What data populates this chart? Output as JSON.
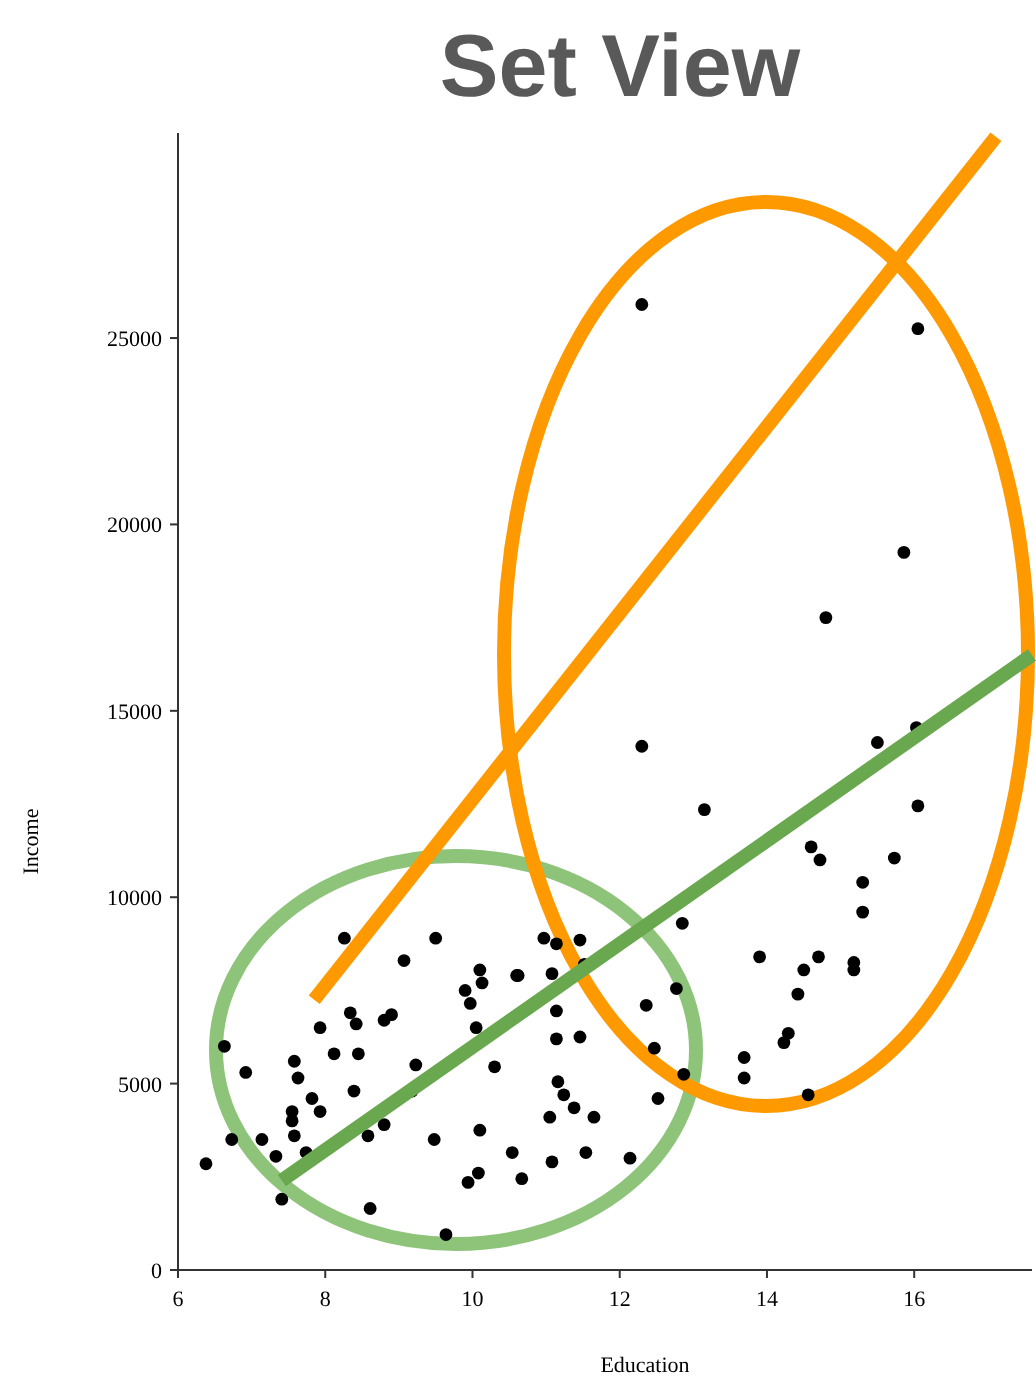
{
  "chart_data": {
    "type": "scatter",
    "title": "Set View",
    "xlabel": "Education",
    "ylabel": "Income",
    "xlim": [
      6,
      17.6
    ],
    "ylim": [
      0,
      30500
    ],
    "xticks": [
      6,
      8,
      10,
      12,
      14,
      16
    ],
    "yticks": [
      0,
      5000,
      10000,
      15000,
      20000,
      25000
    ],
    "grid": false,
    "series": [
      {
        "marker": "circle",
        "color": "#000000",
        "x": [
          8.26,
          9.5,
          9.07,
          10.1,
          10.6,
          9.9,
          10.13,
          9.97,
          8.34,
          8.42,
          7.93,
          8.8,
          8.9,
          10.05,
          8.12,
          8.45,
          7.58,
          6.63,
          6.92,
          7.63,
          9.23,
          10.3,
          8.39,
          7.82,
          7.55,
          7.93,
          9.18,
          7.55,
          7.58,
          6.73,
          7.14,
          8.8,
          8.58,
          7.74,
          7.33,
          6.38,
          9.48,
          10.1,
          10.54,
          10.08,
          9.94,
          10.67,
          7.41,
          8.61,
          9.64,
          12.85,
          10.97,
          11.46,
          11.14,
          11.52,
          10.62,
          11.08,
          12.77,
          12.36,
          11.14,
          11.14,
          11.46,
          12.47,
          13.69,
          13.69,
          12.87,
          11.16,
          11.24,
          12.52,
          11.38,
          11.05,
          11.65,
          11.54,
          11.08,
          12.14,
          16.05,
          15.86,
          14.8,
          15.5,
          16.03,
          16.05,
          14.6,
          14.72,
          15.73,
          15.3,
          15.3,
          13.9,
          14.7,
          14.5,
          15.18,
          15.18,
          14.42,
          14.29,
          14.23,
          14.56,
          12.3,
          12.3,
          13.15
        ],
        "values": [
          8900,
          8900,
          8300,
          8050,
          7900,
          7500,
          7700,
          7150,
          6900,
          6600,
          6500,
          6700,
          6850,
          6500,
          5800,
          5800,
          5600,
          6000,
          5300,
          5150,
          5500,
          5450,
          4800,
          4600,
          4250,
          4250,
          4800,
          4000,
          3600,
          3500,
          3500,
          3900,
          3600,
          3150,
          3050,
          2850,
          3500,
          3750,
          3150,
          2600,
          2350,
          2450,
          1900,
          1650,
          950,
          9300,
          8900,
          8850,
          8750,
          8200,
          7900,
          7950,
          7550,
          7100,
          6950,
          6200,
          6250,
          5950,
          5700,
          5150,
          5250,
          5050,
          4700,
          4600,
          4350,
          4100,
          4100,
          3150,
          2900,
          3000,
          25250,
          19250,
          17500,
          14150,
          14550,
          12450,
          11350,
          11000,
          11050,
          10400,
          9600,
          8400,
          8400,
          8050,
          8250,
          8050,
          7400,
          6350,
          6100,
          4700,
          25900,
          14050,
          12350
        ]
      },
      {
        "type": "line",
        "color": "#ff9900",
        "x": [
          7.85,
          17.11
        ],
        "values": [
          7250,
          30400
        ]
      },
      {
        "type": "line",
        "color": "#6aa84f",
        "x": [
          7.41,
          17.6
        ],
        "values": [
          2400,
          16500
        ]
      }
    ]
  }
}
